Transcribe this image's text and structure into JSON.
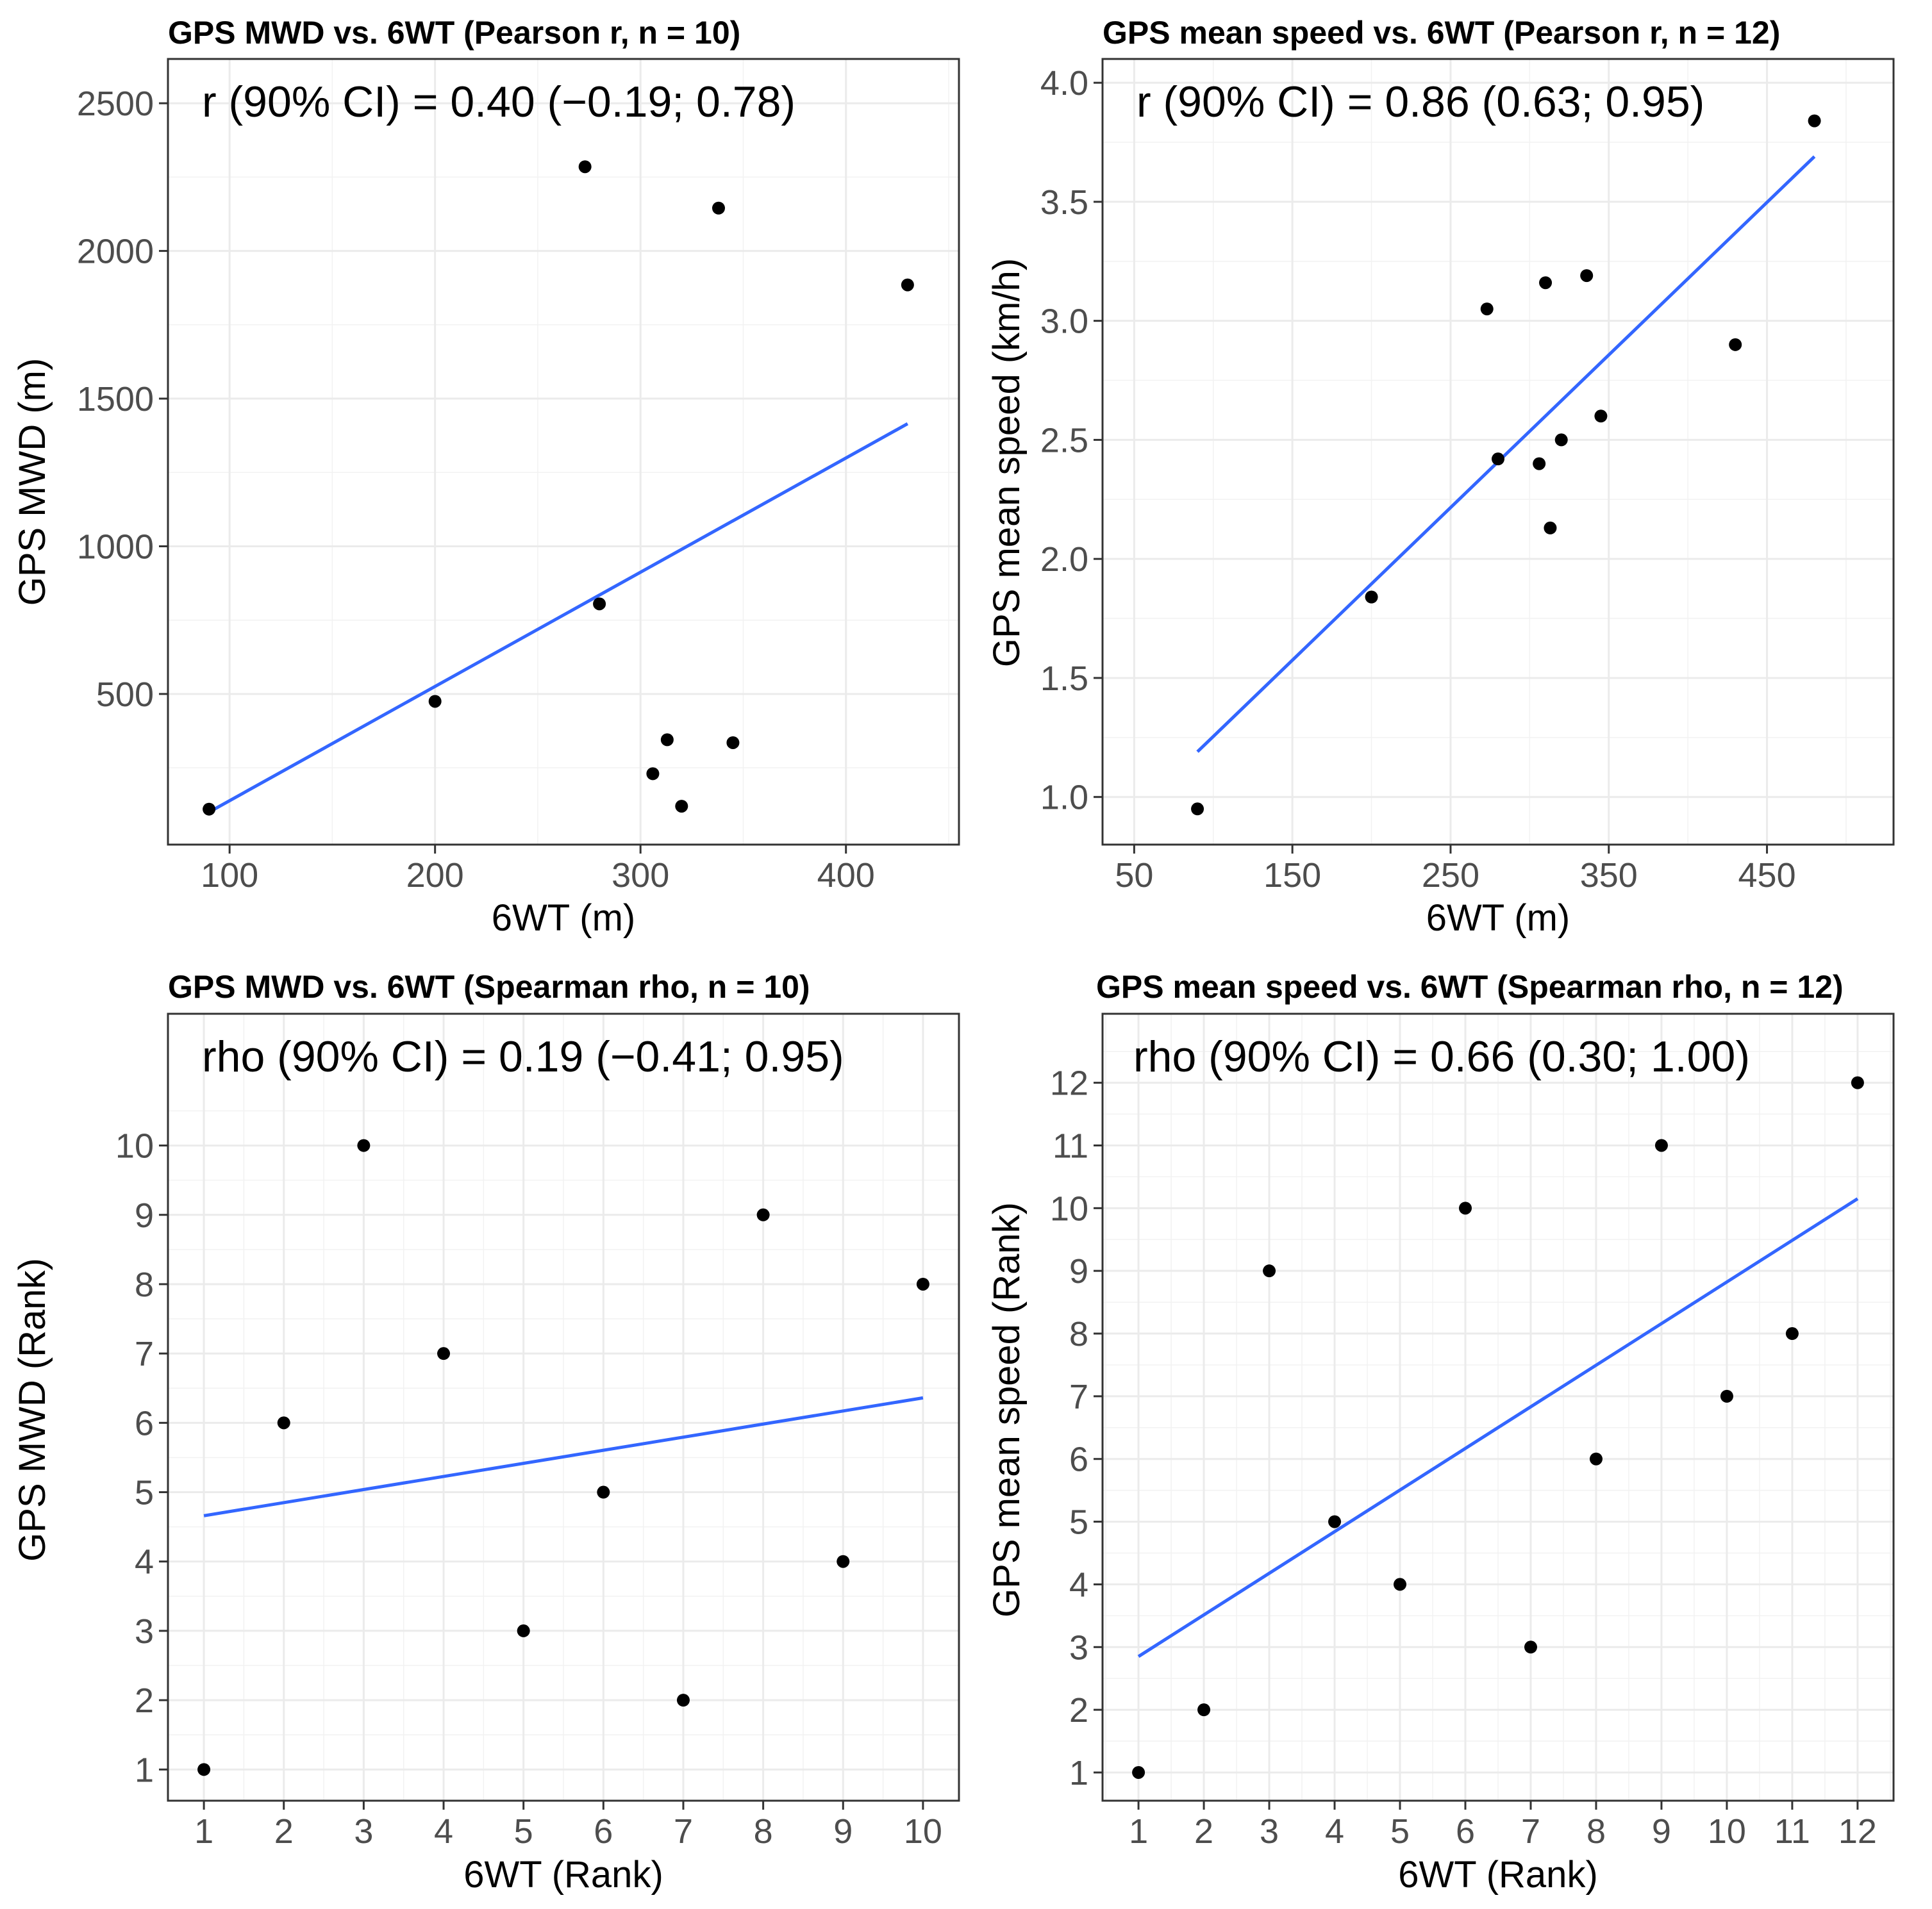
{
  "colors": {
    "background": "#ffffff",
    "panel_border": "#333333",
    "grid": "#ebebeb",
    "point": "#000000",
    "fit_line": "#3366ff"
  },
  "chart_data": [
    {
      "id": "p1",
      "type": "scatter",
      "title": "GPS MWD vs. 6WT (Pearson r, n = 10)",
      "annotation": "r (90% CI) = 0.40 (−0.19; 0.78)",
      "xlabel": "6WT (m)",
      "ylabel": "GPS MWD (m)",
      "xlim": [
        70,
        455
      ],
      "ylim": [
        -10,
        2650
      ],
      "xticks": [
        100,
        200,
        300,
        400
      ],
      "yticks": [
        500,
        1000,
        1500,
        2000,
        2500
      ],
      "grid": true,
      "points": [
        {
          "x": 90,
          "y": 110
        },
        {
          "x": 200,
          "y": 475
        },
        {
          "x": 273,
          "y": 2285
        },
        {
          "x": 280,
          "y": 805
        },
        {
          "x": 306,
          "y": 230
        },
        {
          "x": 313,
          "y": 345
        },
        {
          "x": 320,
          "y": 120
        },
        {
          "x": 338,
          "y": 2145
        },
        {
          "x": 345,
          "y": 335
        },
        {
          "x": 430,
          "y": 1885
        }
      ],
      "fit_line": {
        "x": [
          90,
          430
        ],
        "y": [
          100,
          1415
        ]
      }
    },
    {
      "id": "p2",
      "type": "scatter",
      "title": "GPS mean speed vs. 6WT (Pearson r, n = 12)",
      "annotation": "r (90% CI) = 0.86 (0.63; 0.95)",
      "xlabel": "6WT (m)",
      "ylabel": "GPS mean speed (km/h)",
      "xlim": [
        30,
        530
      ],
      "ylim": [
        0.8,
        4.1
      ],
      "xticks": [
        50,
        150,
        250,
        350,
        450
      ],
      "yticks": [
        1.0,
        1.5,
        2.0,
        2.5,
        3.0,
        3.5,
        4.0
      ],
      "ytick_labels": [
        "1.0",
        "1.5",
        "2.0",
        "2.5",
        "3.0",
        "3.5",
        "4.0"
      ],
      "grid": true,
      "points": [
        {
          "x": 90,
          "y": 0.95
        },
        {
          "x": 200,
          "y": 1.84
        },
        {
          "x": 273,
          "y": 3.05
        },
        {
          "x": 280,
          "y": 2.42
        },
        {
          "x": 306,
          "y": 2.4
        },
        {
          "x": 310,
          "y": 3.16
        },
        {
          "x": 313,
          "y": 2.13
        },
        {
          "x": 320,
          "y": 2.5
        },
        {
          "x": 336,
          "y": 3.19
        },
        {
          "x": 345,
          "y": 2.6
        },
        {
          "x": 430,
          "y": 2.9
        },
        {
          "x": 480,
          "y": 3.84
        }
      ],
      "fit_line": {
        "x": [
          90,
          480
        ],
        "y": [
          1.19,
          3.69
        ]
      }
    },
    {
      "id": "p3",
      "type": "scatter",
      "title": "GPS MWD vs. 6WT (Spearman rho, n = 10)",
      "annotation": "rho (90% CI) = 0.19 (−0.41; 0.95)",
      "xlabel": "6WT (Rank)",
      "ylabel": "GPS MWD (Rank)",
      "xlim": [
        0.55,
        10.45
      ],
      "ylim": [
        0.55,
        11.9
      ],
      "xticks": [
        1,
        2,
        3,
        4,
        5,
        6,
        7,
        8,
        9,
        10
      ],
      "yticks": [
        1,
        2,
        3,
        4,
        5,
        6,
        7,
        8,
        9,
        10
      ],
      "grid": true,
      "points": [
        {
          "x": 1,
          "y": 1
        },
        {
          "x": 2,
          "y": 6
        },
        {
          "x": 3,
          "y": 10
        },
        {
          "x": 4,
          "y": 7
        },
        {
          "x": 5,
          "y": 3
        },
        {
          "x": 6,
          "y": 5
        },
        {
          "x": 7,
          "y": 2
        },
        {
          "x": 8,
          "y": 9
        },
        {
          "x": 9,
          "y": 4
        },
        {
          "x": 10,
          "y": 8
        }
      ],
      "fit_line": {
        "x": [
          1,
          10
        ],
        "y": [
          4.66,
          6.36
        ]
      }
    },
    {
      "id": "p4",
      "type": "scatter",
      "title": "GPS mean speed vs. 6WT (Spearman rho, n = 12)",
      "annotation": "rho (90% CI) = 0.66 (0.30; 1.00)",
      "xlabel": "6WT (Rank)",
      "ylabel": "GPS mean speed (Rank)",
      "xlim": [
        0.45,
        12.55
      ],
      "ylim": [
        0.55,
        13.1
      ],
      "xticks": [
        1,
        2,
        3,
        4,
        5,
        6,
        7,
        8,
        9,
        10,
        11,
        12
      ],
      "yticks": [
        1,
        2,
        3,
        4,
        5,
        6,
        7,
        8,
        9,
        10,
        11,
        12
      ],
      "grid": true,
      "points": [
        {
          "x": 1,
          "y": 1
        },
        {
          "x": 2,
          "y": 2
        },
        {
          "x": 3,
          "y": 9
        },
        {
          "x": 4,
          "y": 5
        },
        {
          "x": 5,
          "y": 4
        },
        {
          "x": 6,
          "y": 10
        },
        {
          "x": 7,
          "y": 3
        },
        {
          "x": 8,
          "y": 6
        },
        {
          "x": 9,
          "y": 11
        },
        {
          "x": 10,
          "y": 7
        },
        {
          "x": 11,
          "y": 8
        },
        {
          "x": 12,
          "y": 12
        }
      ],
      "fit_line": {
        "x": [
          1,
          12
        ],
        "y": [
          2.85,
          10.15
        ]
      }
    }
  ]
}
